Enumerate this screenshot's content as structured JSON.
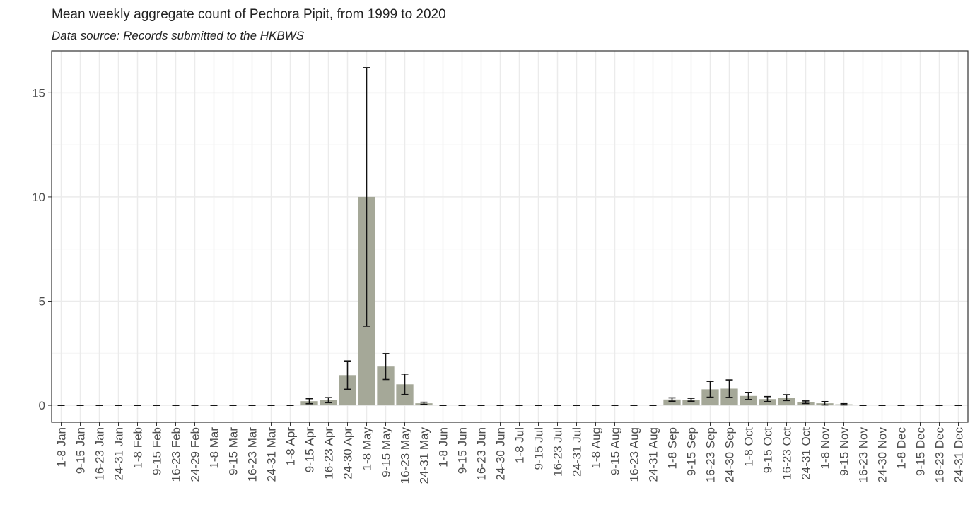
{
  "chart_data": {
    "type": "bar",
    "title": "Mean weekly aggregate count of Pechora Pipit, from 1999 to 2020",
    "subtitle": "Data source: Records submitted to the HKBWS",
    "categories": [
      "1-8 Jan",
      "9-15 Jan",
      "16-23 Jan",
      "24-31 Jan",
      "1-8 Feb",
      "9-15 Feb",
      "16-23 Feb",
      "24-29 Feb",
      "1-8 Mar",
      "9-15 Mar",
      "16-23 Mar",
      "24-31 Mar",
      "1-8 Apr",
      "9-15 Apr",
      "16-23 Apr",
      "24-30 Apr",
      "1-8 May",
      "9-15 May",
      "16-23 May",
      "24-31 May",
      "1-8 Jun",
      "9-15 Jun",
      "16-23 Jun",
      "24-30 Jun",
      "1-8 Jul",
      "9-15 Jul",
      "16-23 Jul",
      "24-31 Jul",
      "1-8 Aug",
      "9-15 Aug",
      "16-23 Aug",
      "24-31 Aug",
      "1-8 Sep",
      "9-15 Sep",
      "16-23 Sep",
      "24-30 Sep",
      "1-8 Oct",
      "9-15 Oct",
      "16-23 Oct",
      "24-31 Oct",
      "1-8 Nov",
      "9-15 Nov",
      "16-23 Nov",
      "24-30 Nov",
      "1-8 Dec",
      "9-15 Dec",
      "16-23 Dec",
      "24-31 Dec"
    ],
    "values": [
      0,
      0,
      0,
      0,
      0,
      0,
      0,
      0,
      0,
      0,
      0,
      0,
      0,
      0.2,
      0.25,
      1.45,
      10,
      1.86,
      1.01,
      0.1,
      0,
      0,
      0,
      0,
      0,
      0,
      0,
      0,
      0,
      0,
      0,
      0,
      0.28,
      0.27,
      0.77,
      0.8,
      0.45,
      0.3,
      0.37,
      0.15,
      0.1,
      0.05,
      0,
      0,
      0,
      0,
      0,
      0
    ],
    "errors": [
      0,
      0,
      0,
      0,
      0,
      0,
      0,
      0,
      0,
      0,
      0,
      0,
      0,
      0.12,
      0.12,
      0.68,
      6.2,
      0.62,
      0.49,
      0.05,
      0,
      0,
      0,
      0,
      0,
      0,
      0,
      0,
      0,
      0,
      0,
      0,
      0.08,
      0.07,
      0.38,
      0.42,
      0.17,
      0.12,
      0.14,
      0.06,
      0.08,
      0.03,
      0,
      0,
      0,
      0,
      0,
      0
    ],
    "color": "#a5a898",
    "ylim": [
      -0.81,
      17.01
    ],
    "yticks": [
      0,
      5,
      10,
      15
    ],
    "y_minor_grid": [
      2.5,
      7.5,
      12.5
    ],
    "grid": true
  }
}
